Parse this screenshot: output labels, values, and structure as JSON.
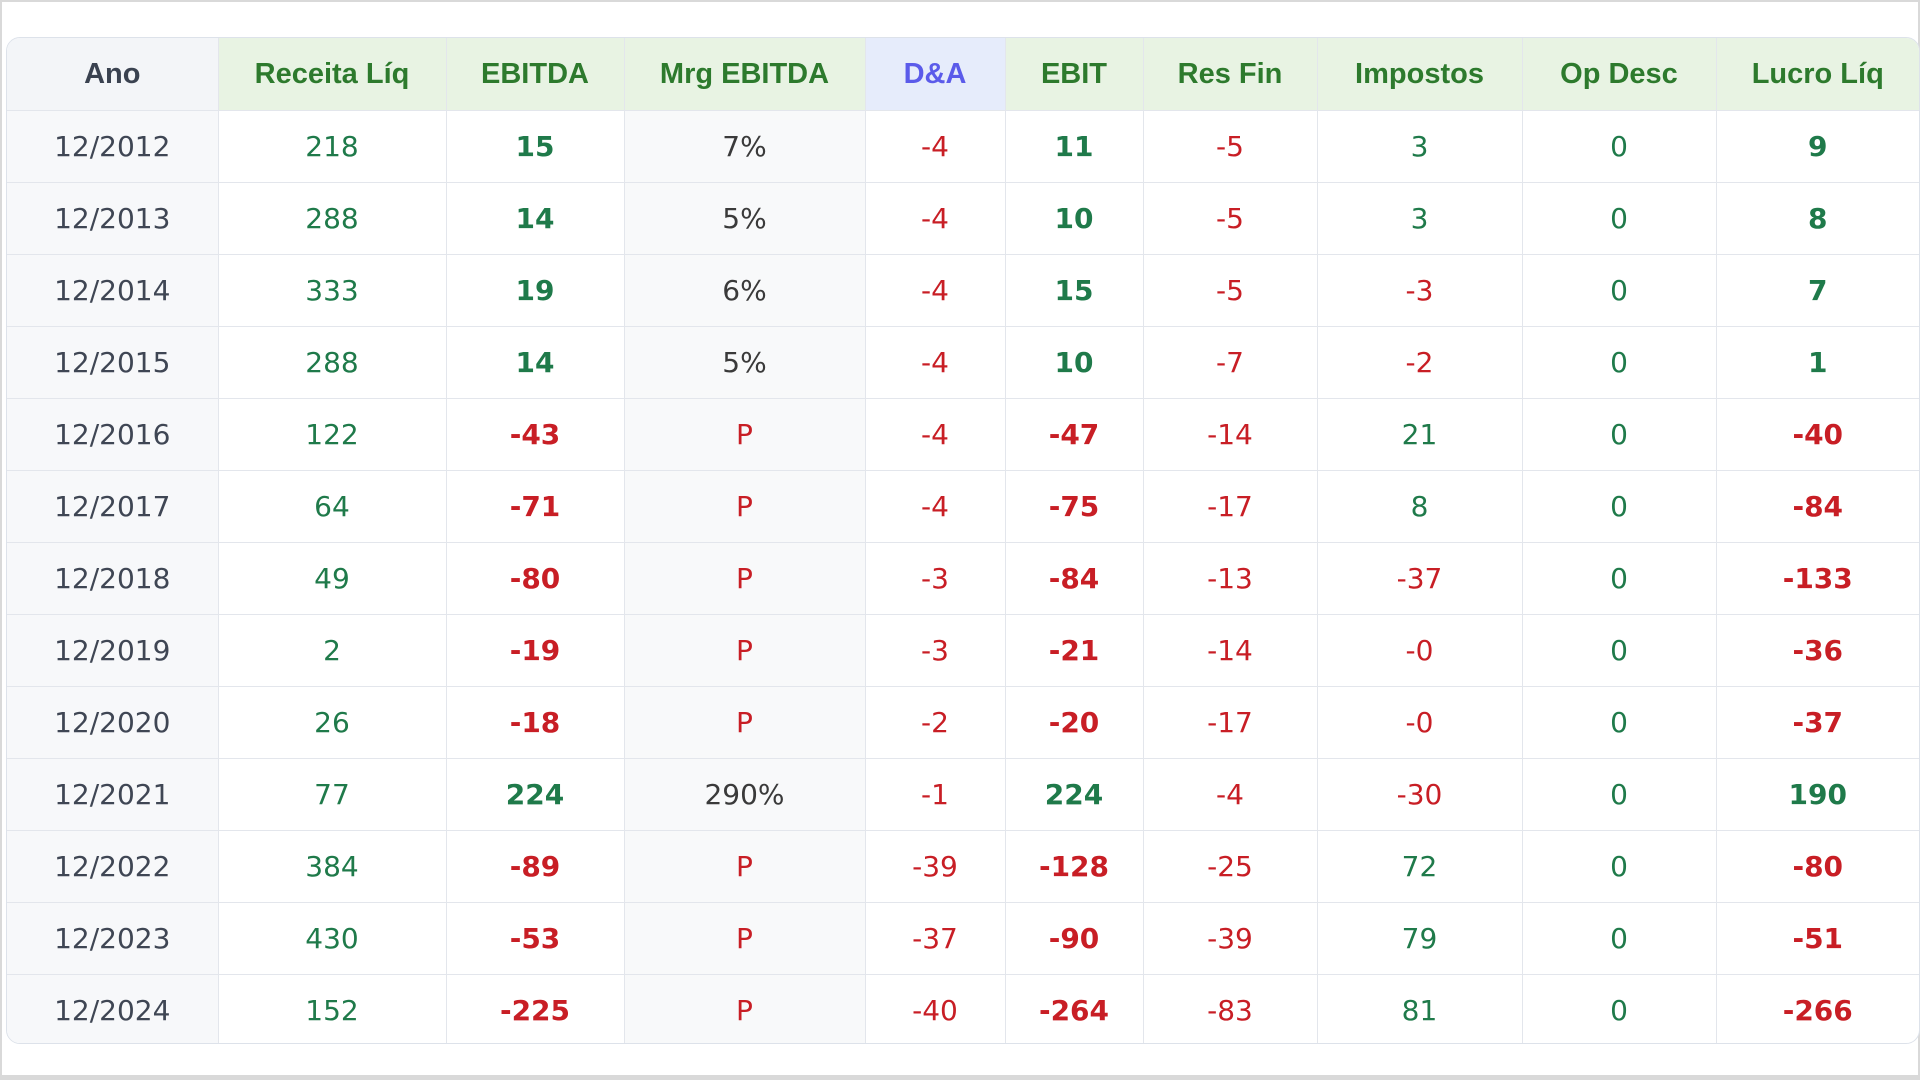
{
  "headers": [
    "Ano",
    "Receita Líq",
    "EBITDA",
    "Mrg EBITDA",
    "D&A",
    "EBIT",
    "Res Fin",
    "Impostos",
    "Op Desc",
    "Lucro Líq"
  ],
  "rows": [
    [
      "12/2012",
      "218",
      "15",
      "7%",
      "-4",
      "11",
      "-5",
      "3",
      "0",
      "9"
    ],
    [
      "12/2013",
      "288",
      "14",
      "5%",
      "-4",
      "10",
      "-5",
      "3",
      "0",
      "8"
    ],
    [
      "12/2014",
      "333",
      "19",
      "6%",
      "-4",
      "15",
      "-5",
      "-3",
      "0",
      "7"
    ],
    [
      "12/2015",
      "288",
      "14",
      "5%",
      "-4",
      "10",
      "-7",
      "-2",
      "0",
      "1"
    ],
    [
      "12/2016",
      "122",
      "-43",
      "P",
      "-4",
      "-47",
      "-14",
      "21",
      "0",
      "-40"
    ],
    [
      "12/2017",
      "64",
      "-71",
      "P",
      "-4",
      "-75",
      "-17",
      "8",
      "0",
      "-84"
    ],
    [
      "12/2018",
      "49",
      "-80",
      "P",
      "-3",
      "-84",
      "-13",
      "-37",
      "0",
      "-133"
    ],
    [
      "12/2019",
      "2",
      "-19",
      "P",
      "-3",
      "-21",
      "-14",
      "-0",
      "0",
      "-36"
    ],
    [
      "12/2020",
      "26",
      "-18",
      "P",
      "-2",
      "-20",
      "-17",
      "-0",
      "0",
      "-37"
    ],
    [
      "12/2021",
      "77",
      "224",
      "290%",
      "-1",
      "224",
      "-4",
      "-30",
      "0",
      "190"
    ],
    [
      "12/2022",
      "384",
      "-89",
      "P",
      "-39",
      "-128",
      "-25",
      "72",
      "0",
      "-80"
    ],
    [
      "12/2023",
      "430",
      "-53",
      "P",
      "-37",
      "-90",
      "-39",
      "79",
      "0",
      "-51"
    ],
    [
      "12/2024",
      "152",
      "-225",
      "P",
      "-40",
      "-264",
      "-83",
      "81",
      "0",
      "-266"
    ]
  ],
  "colors": {
    "positive": "#1f7a4a",
    "negative": "#c81e25",
    "header_green": "#2d7a2d",
    "header_da": "#5b5bea"
  }
}
